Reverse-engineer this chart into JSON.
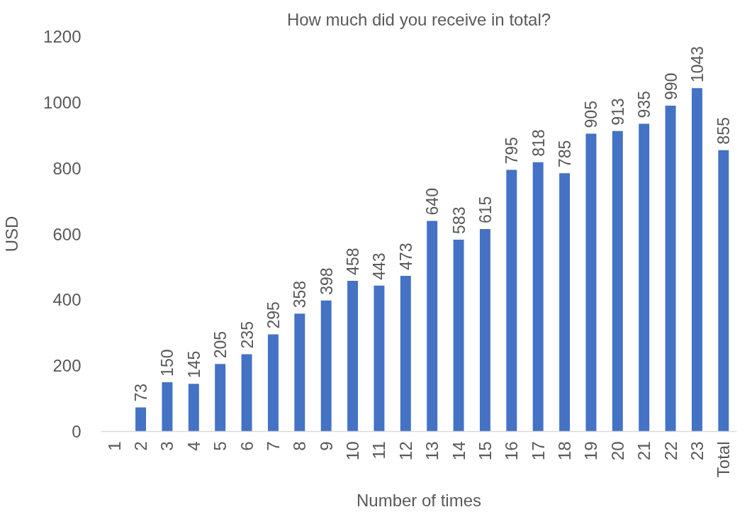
{
  "chart_data": {
    "type": "bar",
    "title": "How much did you receive in total?",
    "xlabel": "Number of times",
    "ylabel": "USD",
    "categories": [
      "1",
      "2",
      "3",
      "4",
      "5",
      "6",
      "7",
      "8",
      "9",
      "10",
      "11",
      "12",
      "13",
      "14",
      "15",
      "16",
      "17",
      "18",
      "19",
      "20",
      "21",
      "22",
      "23",
      "Total"
    ],
    "values": [
      null,
      73,
      150,
      145,
      205,
      235,
      295,
      358,
      398,
      458,
      443,
      473,
      640,
      583,
      615,
      795,
      818,
      785,
      905,
      913,
      935,
      990,
      1043,
      855
    ],
    "color": "#4472c4",
    "ylim": [
      0,
      1200
    ],
    "yticks": [
      0,
      200,
      400,
      600,
      800,
      1000,
      1200
    ],
    "grid": false,
    "data_labels": true
  }
}
